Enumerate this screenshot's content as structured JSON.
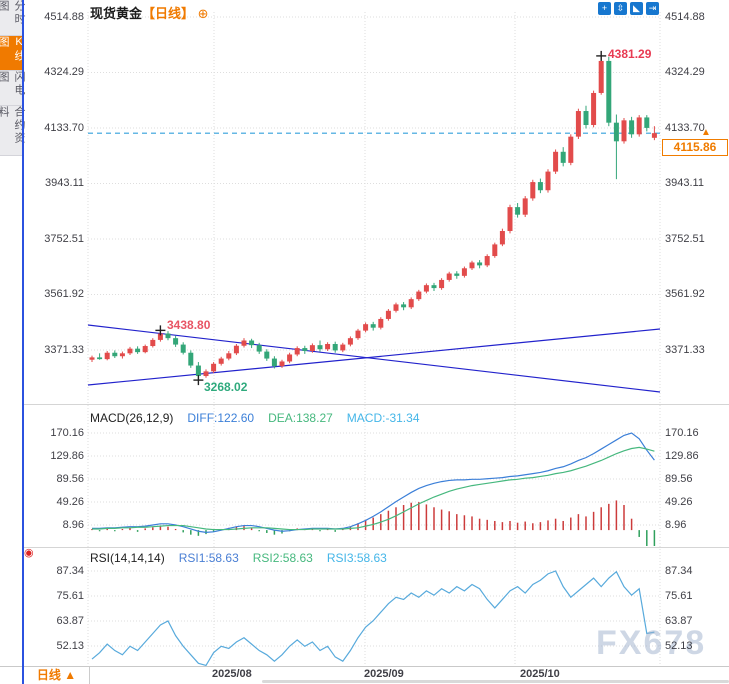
{
  "sidebar": {
    "tabs": [
      {
        "label": "分时图",
        "active": false
      },
      {
        "label": "K线图",
        "active": true
      },
      {
        "label": "闪电图",
        "active": false
      },
      {
        "label": "合约资料",
        "active": false
      }
    ]
  },
  "header": {
    "title": "现货黄金",
    "period_tag": "【日线】",
    "settings_glyph": "⊕"
  },
  "toolbar": {
    "icons": [
      {
        "name": "crosshair-tool",
        "glyph": "+"
      },
      {
        "name": "zoom-range-tool",
        "glyph": "⇳"
      },
      {
        "name": "marker-tool",
        "glyph": "◣"
      },
      {
        "name": "pan-right-tool",
        "glyph": "⇥"
      }
    ]
  },
  "main_chart": {
    "y_ticks": [
      "4514.88",
      "4324.29",
      "4133.70",
      "3943.11",
      "3752.51",
      "3561.92",
      "3371.33"
    ],
    "peak_label": "4381.29",
    "swing_high_label": "3438.80",
    "swing_low_label": "3268.02",
    "last_price_label": "4115.86",
    "arrow_glyph": "▲"
  },
  "macd": {
    "title": "MACD(26,12,9)",
    "diff_label": "DIFF:122.60",
    "dea_label": "DEA:138.27",
    "macd_label": "MACD:-31.34",
    "y_ticks": [
      "170.16",
      "129.86",
      "89.56",
      "49.26",
      "8.96"
    ]
  },
  "rsi": {
    "title": "RSI(14,14,14)",
    "rsi1_label": "RSI1:58.63",
    "rsi2_label": "RSI2:58.63",
    "rsi3_label": "RSI3:58.63",
    "y_ticks": [
      "87.34",
      "75.61",
      "63.87",
      "52.13"
    ],
    "anchor_glyph": "◉"
  },
  "bottom": {
    "period_label": "日线 ▲",
    "x_labels": [
      "2025/08",
      "2025/09",
      "2025/10"
    ]
  },
  "watermark": "FX678",
  "colors": {
    "accent_orange": "#f07a00",
    "candle_up": "#e24b4b",
    "candle_down": "#33a678",
    "trendline": "#2222cc",
    "last_price_line": "#33a0dc",
    "diff": "#3b7fd8",
    "dea": "#46b87e",
    "macd_text": "#45b6e8",
    "rsi_line": "#58aadc",
    "icon_blue": "#1777cf"
  },
  "chart_data": {
    "type": "candlestick+indicators",
    "symbol": "现货黄金",
    "period": "日线",
    "price_axis": [
      4514.88,
      4324.29,
      4133.7,
      3943.11,
      3752.51,
      3561.92,
      3371.33
    ],
    "x_axis": [
      "2025/08",
      "2025/09",
      "2025/10"
    ],
    "last_price": 4115.86,
    "annotations": {
      "peak": 4381.29,
      "swing_high": 3438.8,
      "swing_low": 3268.02
    },
    "markers": [
      {
        "i": 67,
        "p": 4381.29
      },
      {
        "i": 9,
        "p": 3438.8
      },
      {
        "i": 14,
        "p": 3268.02
      }
    ],
    "trendlines": [
      {
        "x1": 88,
        "y1": 325,
        "x2": 660,
        "y2": 392
      },
      {
        "x1": 88,
        "y1": 385,
        "x2": 660,
        "y2": 329
      }
    ],
    "candles": [
      [
        3338,
        3352,
        3330,
        3346
      ],
      [
        3346,
        3360,
        3338,
        3340
      ],
      [
        3340,
        3368,
        3336,
        3362
      ],
      [
        3362,
        3370,
        3344,
        3350
      ],
      [
        3350,
        3366,
        3342,
        3360
      ],
      [
        3360,
        3382,
        3354,
        3376
      ],
      [
        3376,
        3384,
        3358,
        3364
      ],
      [
        3364,
        3390,
        3360,
        3385
      ],
      [
        3385,
        3412,
        3380,
        3406
      ],
      [
        3406,
        3438.8,
        3400,
        3428
      ],
      [
        3428,
        3436,
        3405,
        3412
      ],
      [
        3412,
        3420,
        3382,
        3390
      ],
      [
        3390,
        3398,
        3356,
        3362
      ],
      [
        3362,
        3370,
        3310,
        3318
      ],
      [
        3318,
        3330,
        3268.02,
        3282
      ],
      [
        3282,
        3305,
        3276,
        3298
      ],
      [
        3298,
        3330,
        3292,
        3324
      ],
      [
        3324,
        3348,
        3318,
        3342
      ],
      [
        3342,
        3368,
        3336,
        3360
      ],
      [
        3360,
        3392,
        3354,
        3386
      ],
      [
        3386,
        3412,
        3380,
        3404
      ],
      [
        3404,
        3410,
        3378,
        3388
      ],
      [
        3388,
        3396,
        3358,
        3366
      ],
      [
        3366,
        3374,
        3334,
        3342
      ],
      [
        3342,
        3350,
        3308,
        3316
      ],
      [
        3316,
        3338,
        3310,
        3332
      ],
      [
        3332,
        3362,
        3326,
        3356
      ],
      [
        3356,
        3384,
        3350,
        3378
      ],
      [
        3378,
        3386,
        3358,
        3368
      ],
      [
        3368,
        3394,
        3362,
        3388
      ],
      [
        3388,
        3404,
        3366,
        3374
      ],
      [
        3374,
        3398,
        3368,
        3392
      ],
      [
        3392,
        3400,
        3362,
        3370
      ],
      [
        3370,
        3396,
        3364,
        3390
      ],
      [
        3390,
        3418,
        3384,
        3412
      ],
      [
        3412,
        3444,
        3406,
        3438
      ],
      [
        3438,
        3466,
        3432,
        3460
      ],
      [
        3460,
        3468,
        3438,
        3448
      ],
      [
        3448,
        3484,
        3442,
        3478
      ],
      [
        3478,
        3512,
        3472,
        3506
      ],
      [
        3506,
        3534,
        3500,
        3528
      ],
      [
        3528,
        3536,
        3508,
        3518
      ],
      [
        3518,
        3552,
        3512,
        3546
      ],
      [
        3546,
        3578,
        3540,
        3572
      ],
      [
        3572,
        3600,
        3566,
        3594
      ],
      [
        3594,
        3602,
        3574,
        3584
      ],
      [
        3584,
        3618,
        3578,
        3612
      ],
      [
        3612,
        3640,
        3606,
        3634
      ],
      [
        3634,
        3642,
        3616,
        3626
      ],
      [
        3626,
        3658,
        3620,
        3652
      ],
      [
        3652,
        3678,
        3646,
        3672
      ],
      [
        3672,
        3680,
        3652,
        3662
      ],
      [
        3662,
        3700,
        3656,
        3694
      ],
      [
        3694,
        3740,
        3688,
        3734
      ],
      [
        3734,
        3788,
        3728,
        3780
      ],
      [
        3780,
        3870,
        3772,
        3862
      ],
      [
        3862,
        3876,
        3826,
        3836
      ],
      [
        3836,
        3900,
        3828,
        3892
      ],
      [
        3892,
        3956,
        3884,
        3948
      ],
      [
        3948,
        3960,
        3910,
        3920
      ],
      [
        3920,
        3992,
        3912,
        3984
      ],
      [
        3984,
        4060,
        3976,
        4052
      ],
      [
        4052,
        4068,
        4002,
        4014
      ],
      [
        4014,
        4112,
        4006,
        4104
      ],
      [
        4104,
        4200,
        4096,
        4192
      ],
      [
        4192,
        4210,
        4132,
        4144
      ],
      [
        4144,
        4262,
        4136,
        4254
      ],
      [
        4254,
        4381.29,
        4248,
        4364
      ],
      [
        4364,
        4378,
        4140,
        4152
      ],
      [
        4152,
        4180,
        3958,
        4088
      ],
      [
        4088,
        4168,
        4080,
        4160
      ],
      [
        4160,
        4172,
        4100,
        4112
      ],
      [
        4112,
        4178,
        4104,
        4170
      ],
      [
        4170,
        4178,
        4122,
        4134
      ],
      [
        4100,
        4140,
        4092,
        4116
      ]
    ],
    "macd": {
      "axis": [
        170.16,
        129.86,
        89.56,
        49.26,
        8.96
      ],
      "diff": 122.6,
      "dea": 138.27,
      "macd": -31.34,
      "hist": [
        2,
        -2,
        3,
        -2,
        2,
        4,
        -3,
        3,
        5,
        8,
        6,
        2,
        -4,
        -8,
        -10,
        -7,
        -3,
        2,
        4,
        6,
        7,
        4,
        -2,
        -5,
        -8,
        -6,
        -2,
        3,
        2,
        3,
        -2,
        2,
        -3,
        2,
        6,
        12,
        18,
        22,
        28,
        34,
        40,
        44,
        48,
        49,
        45,
        40,
        36,
        33,
        28,
        26,
        24,
        20,
        18,
        16,
        14,
        16,
        13,
        15,
        12,
        14,
        17,
        20,
        16,
        22,
        28,
        24,
        32,
        40,
        46,
        52,
        44,
        20,
        -12,
        -38,
        -31.34
      ],
      "diff_line": [
        3,
        3,
        4,
        4,
        5,
        6,
        6,
        7,
        9,
        11,
        11,
        9,
        6,
        2,
        -2,
        -4,
        -3,
        0,
        3,
        6,
        8,
        8,
        6,
        3,
        0,
        -2,
        -1,
        1,
        2,
        3,
        3,
        3,
        2,
        3,
        6,
        11,
        17,
        24,
        32,
        41,
        50,
        58,
        66,
        73,
        78,
        82,
        85,
        87,
        88,
        88,
        89,
        89,
        90,
        91,
        92,
        94,
        95,
        97,
        99,
        101,
        104,
        108,
        111,
        116,
        122,
        127,
        134,
        142,
        150,
        158,
        166,
        170.16,
        160,
        140,
        122.6
      ],
      "dea_line": [
        2,
        2,
        3,
        3,
        4,
        4,
        5,
        5,
        6,
        7,
        8,
        8,
        8,
        6,
        4,
        2,
        1,
        1,
        1,
        2,
        3,
        4,
        4,
        4,
        3,
        2,
        1,
        1,
        1,
        2,
        2,
        2,
        2,
        2,
        3,
        4,
        7,
        10,
        14,
        19,
        25,
        32,
        39,
        46,
        52,
        58,
        63,
        68,
        72,
        75,
        78,
        80,
        82,
        84,
        86,
        88,
        89,
        91,
        92,
        94,
        96,
        99,
        101,
        104,
        108,
        112,
        117,
        122,
        128,
        134,
        139,
        143,
        145,
        142,
        138.27
      ]
    },
    "rsi": {
      "axis": [
        87.34,
        75.61,
        63.87,
        52.13
      ],
      "values": [
        46,
        49,
        53,
        50,
        48,
        52,
        50,
        54,
        58,
        62,
        63.9,
        57,
        52,
        48,
        44,
        43,
        49,
        52,
        51,
        54,
        56,
        53,
        50,
        48,
        45,
        48,
        52,
        55,
        52,
        54,
        50,
        52,
        47,
        45,
        50,
        56,
        61,
        64,
        68,
        72,
        75,
        74,
        77,
        75,
        78,
        76,
        79,
        77,
        80,
        78,
        81,
        79,
        74,
        70,
        74,
        78,
        80,
        77,
        81,
        83,
        86,
        87.34,
        80,
        75,
        78,
        81,
        84,
        80,
        84,
        87,
        80,
        76,
        79,
        58,
        58.63
      ]
    }
  }
}
